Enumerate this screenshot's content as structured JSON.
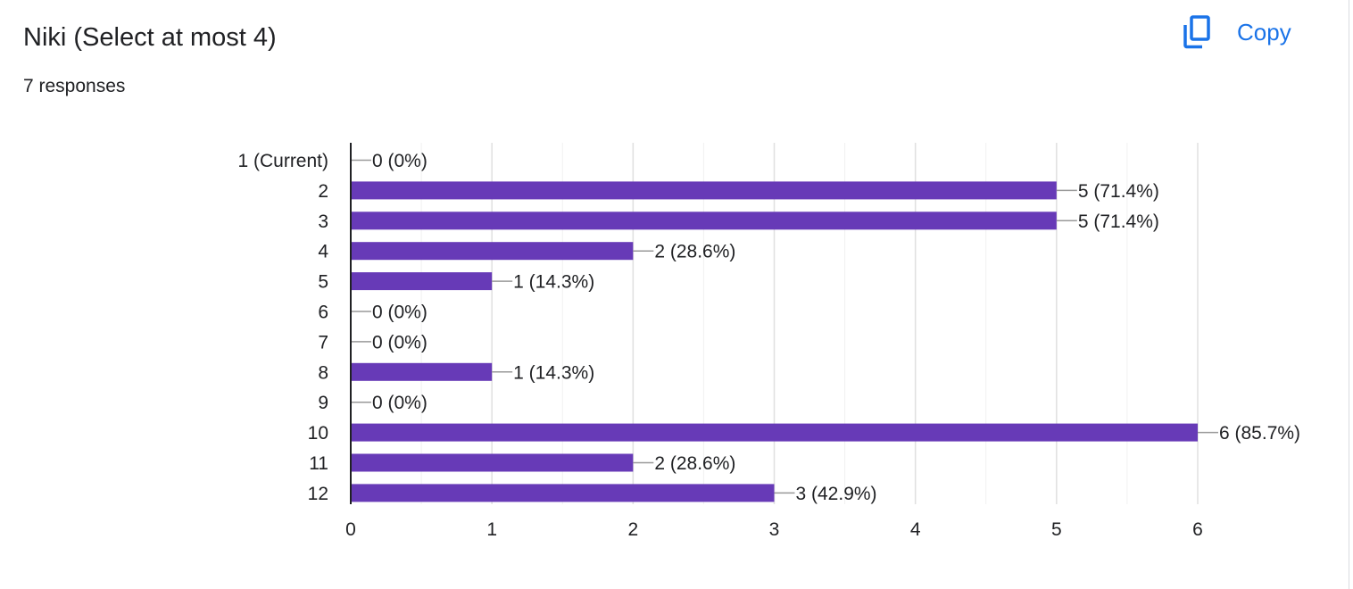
{
  "header": {
    "title": "Niki (Select at most 4)",
    "responses": "7 responses",
    "copy_label": "Copy",
    "copy_icon": "copy-icon"
  },
  "colors": {
    "bar": "#673ab7",
    "accent": "#1a73e8",
    "grid": "#e8eaed",
    "axis": "#202124",
    "leader": "#999999"
  },
  "chart_data": {
    "type": "bar",
    "orientation": "horizontal",
    "title": "",
    "xlabel": "",
    "ylabel": "",
    "categories": [
      "1 (Current)",
      "2",
      "3",
      "4",
      "5",
      "6",
      "7",
      "8",
      "9",
      "10",
      "11",
      "12"
    ],
    "values": [
      0,
      5,
      5,
      2,
      1,
      0,
      0,
      1,
      0,
      6,
      2,
      3
    ],
    "data_labels": [
      "0 (0%)",
      "5 (71.4%)",
      "5 (71.4%)",
      "2 (28.6%)",
      "1 (14.3%)",
      "0 (0%)",
      "0 (0%)",
      "1 (14.3%)",
      "0 (0%)",
      "6 (85.7%)",
      "2 (28.6%)",
      "3 (42.9%)"
    ],
    "xlim": [
      0,
      6
    ],
    "xticks": [
      "0",
      "1",
      "2",
      "3",
      "4",
      "5",
      "6"
    ],
    "grid": true
  }
}
